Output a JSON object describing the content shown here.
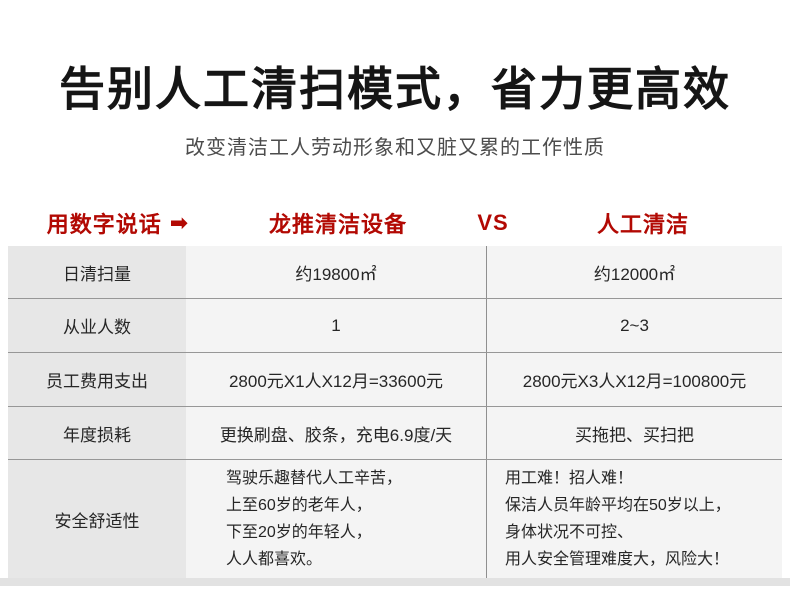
{
  "page": {
    "title": "告别人工清扫模式，省力更高效",
    "subtitle": "改变清洁工人劳动形象和又脏又累的工作性质"
  },
  "comparison_header": {
    "label": "用数字说话",
    "arrow_icon": "➡",
    "equipment_name": "龙推清洁设备",
    "vs": "VS",
    "manual_name": "人工清洁"
  },
  "table": {
    "rows": [
      {
        "label": "日清扫量",
        "equipment": "约19800㎡",
        "manual": "约12000㎡"
      },
      {
        "label": "从业人数",
        "equipment": "1",
        "manual": "2~3"
      },
      {
        "label": "员工费用支出",
        "equipment": "2800元X1人X12月=33600元",
        "manual": "2800元X3人X12月=100800元"
      },
      {
        "label": "年度损耗",
        "equipment": "更换刷盘、胶条，充电6.9度/天",
        "manual": "买拖把、买扫把"
      },
      {
        "label": "安全舒适性",
        "equipment_lines": [
          "驾驶乐趣替代人工辛苦，",
          "上至60岁的老年人，",
          "下至20岁的年轻人，",
          "人人都喜欢。"
        ],
        "manual_lines": [
          "用工难！招人难！",
          "保洁人员年龄平均在50岁以上，",
          "身体状况不可控、",
          "用人安全管理难度大，风险大！"
        ]
      }
    ]
  },
  "colors": {
    "accent_red": "#b20903",
    "vs_red": "#d8120c",
    "label_column_bg": "#e7e7e7",
    "cell_bg": "#f4f4f4",
    "row_divider": "#979797",
    "column_divider": "#8f8f8f"
  }
}
